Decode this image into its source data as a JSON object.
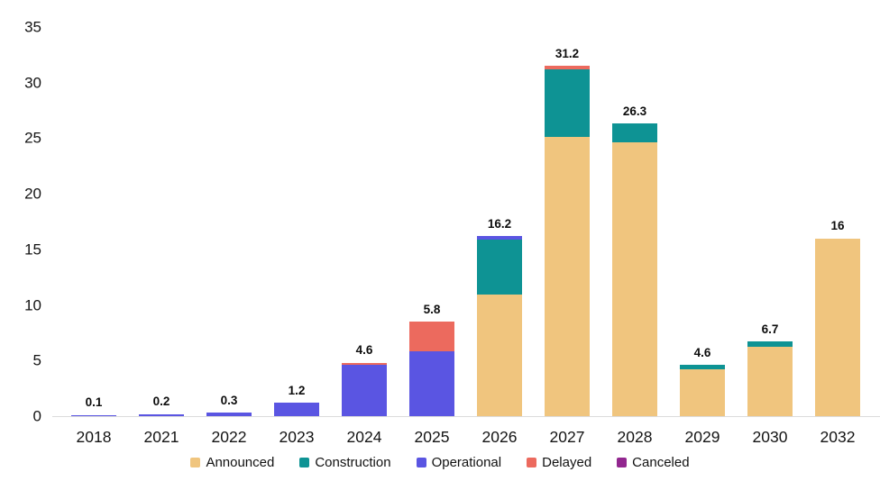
{
  "chart_data": {
    "type": "bar",
    "stacked": true,
    "title": "",
    "xlabel": "",
    "ylabel": "",
    "ylim": [
      0,
      35
    ],
    "yticks": [
      0,
      5,
      10,
      15,
      20,
      25,
      30,
      35
    ],
    "grid": false,
    "legend_position": "bottom",
    "categories": [
      "2018",
      "2021",
      "2022",
      "2023",
      "2024",
      "2025",
      "2026",
      "2027",
      "2028",
      "2029",
      "2030",
      "2032"
    ],
    "bar_total_labels": [
      "0.1",
      "0.2",
      "0.3",
      "1.2",
      "4.6",
      "5.8",
      "16.2",
      "31.2",
      "26.3",
      "4.6",
      "6.7",
      "16"
    ],
    "stack_order_bottom_to_top": [
      "Announced",
      "Construction",
      "Operational",
      "Delayed",
      "Canceled"
    ],
    "series": [
      {
        "name": "Announced",
        "color": "#F0C57E",
        "values": [
          0,
          0,
          0,
          0,
          0,
          0,
          10.9,
          25.1,
          24.6,
          4.2,
          6.2,
          16
        ]
      },
      {
        "name": "Construction",
        "color": "#0E9394",
        "values": [
          0,
          0,
          0,
          0,
          0,
          0,
          5.0,
          6.1,
          1.7,
          0.4,
          0.5,
          0
        ]
      },
      {
        "name": "Operational",
        "color": "#5A55E2",
        "values": [
          0.1,
          0.2,
          0.3,
          1.2,
          4.6,
          5.8,
          0.3,
          0,
          0,
          0,
          0,
          0
        ]
      },
      {
        "name": "Delayed",
        "color": "#EC6A5E",
        "values": [
          0,
          0,
          0,
          0,
          0.2,
          2.7,
          0,
          0.3,
          0,
          0,
          0,
          0
        ]
      },
      {
        "name": "Canceled",
        "color": "#92278F",
        "values": [
          0,
          0,
          0,
          0,
          0,
          0,
          0,
          0,
          0,
          0,
          0,
          0
        ]
      }
    ],
    "legend": [
      "Announced",
      "Construction",
      "Operational",
      "Delayed",
      "Canceled"
    ],
    "colors": {
      "axis_line": "#dcdcdc",
      "tick_text": "#141414",
      "value_label_text": "#0d0d0d",
      "background": "#ffffff"
    }
  }
}
